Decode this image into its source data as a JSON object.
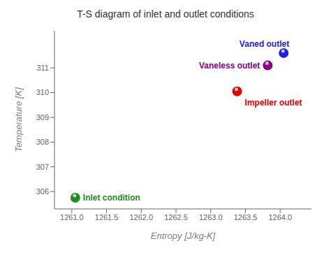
{
  "chart_data": {
    "type": "scatter",
    "title": "T-S diagram of inlet and outlet conditions",
    "xlabel": "Entropy [J/kg-K]",
    "ylabel": "Temperature [K]",
    "xlim": [
      1260.75,
      1264.45
    ],
    "ylim": [
      305.3,
      312.5
    ],
    "xticks": [
      {
        "value": 1261,
        "label": "1261.0"
      },
      1261.5,
      {
        "value": 1262,
        "label": "1262.0"
      },
      1262.5,
      {
        "value": 1263,
        "label": "1263.0"
      },
      1263.5,
      {
        "value": 1264,
        "label": "1264.0"
      }
    ],
    "yticks": [
      306,
      307,
      308,
      309,
      310,
      311
    ],
    "x": [
      1261.05,
      1263.38,
      1263.82,
      1264.05
    ],
    "values": [
      305.75,
      310.05,
      311.1,
      311.6
    ],
    "colors": [
      "#228B22",
      "#DD0000",
      "#880088",
      "#2222DD"
    ],
    "annotations": [
      {
        "text": "Inlet condition",
        "x": 1261.05,
        "y": 305.75
      },
      {
        "text": "Impeller outlet",
        "x": 1263.38,
        "y": 310.05
      },
      {
        "text": "Vaneless outlet",
        "x": 1263.82,
        "y": 311.1
      },
      {
        "text": "Vaned outlet",
        "x": 1264.05,
        "y": 311.6
      }
    ]
  }
}
